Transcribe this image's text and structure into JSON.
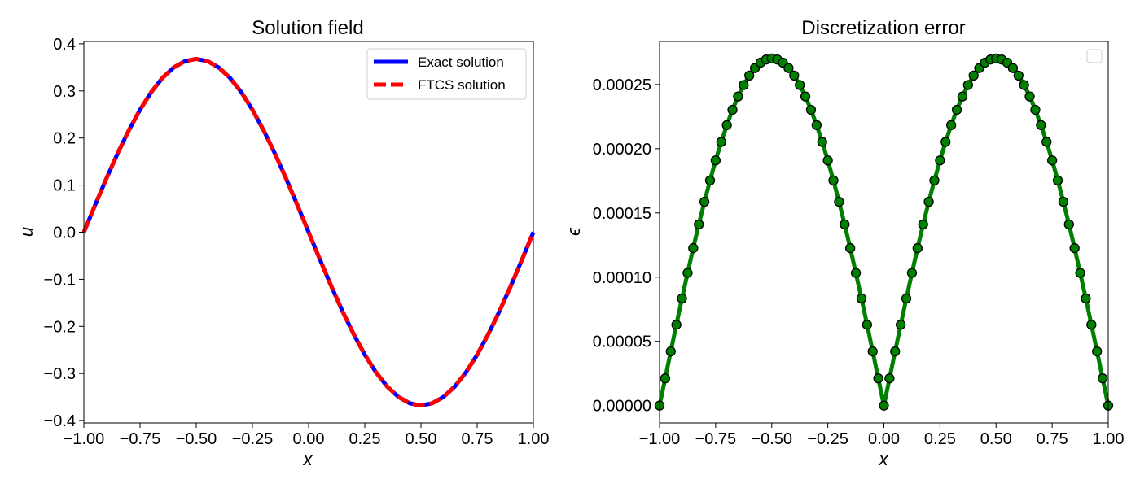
{
  "chart_data": [
    {
      "type": "line",
      "title": "Solution field",
      "xlabel": "x",
      "ylabel": "u",
      "xlim": [
        -1.0,
        1.0
      ],
      "ylim": [
        -0.405,
        0.405
      ],
      "xticks": [
        -1.0,
        -0.75,
        -0.5,
        -0.25,
        0.0,
        0.25,
        0.5,
        0.75,
        1.0
      ],
      "xtick_labels": [
        "−1.00",
        "−0.75",
        "−0.50",
        "−0.25",
        "0.00",
        "0.25",
        "0.50",
        "0.75",
        "1.00"
      ],
      "yticks": [
        -0.4,
        -0.3,
        -0.2,
        -0.1,
        0.0,
        0.1,
        0.2,
        0.3,
        0.4
      ],
      "ytick_labels": [
        "−0.4",
        "−0.3",
        "−0.2",
        "−0.1",
        "0.0",
        "0.1",
        "0.2",
        "0.3",
        "0.4"
      ],
      "grid": false,
      "legend_position": "top-right",
      "x": [
        -1.0,
        -0.95,
        -0.9,
        -0.85,
        -0.8,
        -0.75,
        -0.7,
        -0.65,
        -0.6,
        -0.55,
        -0.5,
        -0.45,
        -0.4,
        -0.35,
        -0.3,
        -0.25,
        -0.2,
        -0.15,
        -0.1,
        -0.05,
        0.0,
        0.05,
        0.1,
        0.15,
        0.2,
        0.25,
        0.3,
        0.35,
        0.4,
        0.45,
        0.5,
        0.55,
        0.6,
        0.65,
        0.7,
        0.75,
        0.8,
        0.85,
        0.9,
        0.95,
        1.0
      ],
      "series": [
        {
          "name": "Exact solution",
          "color": "#0000ff",
          "style": "solid",
          "values": [
            0.0,
            0.0576,
            0.1137,
            0.167,
            0.2162,
            0.2601,
            0.2976,
            0.3278,
            0.3499,
            0.3633,
            0.3679,
            0.3633,
            0.3499,
            0.3278,
            0.2976,
            0.2601,
            0.2162,
            0.167,
            0.1137,
            0.0576,
            0.0,
            -0.0576,
            -0.1137,
            -0.167,
            -0.2162,
            -0.2601,
            -0.2976,
            -0.3278,
            -0.3499,
            -0.3633,
            -0.3679,
            -0.3633,
            -0.3499,
            -0.3278,
            -0.2976,
            -0.2601,
            -0.2162,
            -0.167,
            -0.1137,
            -0.0576,
            0.0
          ]
        },
        {
          "name": "FTCS solution",
          "color": "#ff0000",
          "style": "dashed",
          "values": [
            0.0,
            0.0576,
            0.1137,
            0.167,
            0.2162,
            0.2601,
            0.2976,
            0.3278,
            0.3499,
            0.3633,
            0.3679,
            0.3633,
            0.3499,
            0.3278,
            0.2976,
            0.2601,
            0.2162,
            0.167,
            0.1137,
            0.0576,
            0.0,
            -0.0576,
            -0.1137,
            -0.167,
            -0.2162,
            -0.2601,
            -0.2976,
            -0.3278,
            -0.3499,
            -0.3633,
            -0.3679,
            -0.3633,
            -0.3499,
            -0.3278,
            -0.2976,
            -0.2601,
            -0.2162,
            -0.167,
            -0.1137,
            -0.0576,
            0.0
          ]
        }
      ]
    },
    {
      "type": "line",
      "title": "Discretization error",
      "xlabel": "x",
      "ylabel": "ϵ",
      "xlim": [
        -1.0,
        1.0
      ],
      "ylim": [
        -1.35e-05,
        0.0002835
      ],
      "xticks": [
        -1.0,
        -0.75,
        -0.5,
        -0.25,
        0.0,
        0.25,
        0.5,
        0.75,
        1.0
      ],
      "xtick_labels": [
        "−1.00",
        "−0.75",
        "−0.50",
        "−0.25",
        "0.00",
        "0.25",
        "0.50",
        "0.75",
        "1.00"
      ],
      "yticks": [
        0.0,
        5e-05,
        0.0001,
        0.00015,
        0.0002,
        0.00025
      ],
      "ytick_labels": [
        "0.00000",
        "0.00005",
        "0.00010",
        "0.00015",
        "0.00020",
        "0.00025"
      ],
      "grid": false,
      "legend_position": "top-right (empty)",
      "series": [
        {
          "name": "",
          "color": "#008000",
          "marker": "circle",
          "marker_edge": "#000000",
          "x": [
            -1.0,
            -0.975,
            -0.95,
            -0.925,
            -0.9,
            -0.875,
            -0.85,
            -0.825,
            -0.8,
            -0.775,
            -0.75,
            -0.725,
            -0.7,
            -0.675,
            -0.65,
            -0.625,
            -0.6,
            -0.575,
            -0.55,
            -0.525,
            -0.5,
            -0.475,
            -0.45,
            -0.425,
            -0.4,
            -0.375,
            -0.35,
            -0.325,
            -0.3,
            -0.275,
            -0.25,
            -0.225,
            -0.2,
            -0.175,
            -0.15,
            -0.125,
            -0.1,
            -0.075,
            -0.05,
            -0.025,
            0.0,
            0.025,
            0.05,
            0.075,
            0.1,
            0.125,
            0.15,
            0.175,
            0.2,
            0.225,
            0.25,
            0.275,
            0.3,
            0.325,
            0.35,
            0.375,
            0.4,
            0.425,
            0.45,
            0.475,
            0.5,
            0.525,
            0.55,
            0.575,
            0.6,
            0.625,
            0.65,
            0.675,
            0.7,
            0.725,
            0.75,
            0.775,
            0.8,
            0.825,
            0.85,
            0.875,
            0.9,
            0.925,
            0.95,
            0.975,
            1.0
          ],
          "values": [
            0.0,
            2.12e-05,
            4.22e-05,
            6.3e-05,
            8.34e-05,
            0.0001033,
            0.0001226,
            0.0001411,
            0.0001587,
            0.0001753,
            0.0001909,
            0.0002053,
            0.0002184,
            0.0002303,
            0.0002407,
            0.0002496,
            0.000257,
            0.0002628,
            0.000267,
            0.0002695,
            0.0002703,
            0.0002695,
            0.000267,
            0.0002628,
            0.000257,
            0.0002496,
            0.0002407,
            0.0002303,
            0.0002184,
            0.0002053,
            0.0001909,
            0.0001753,
            0.0001587,
            0.0001411,
            0.0001226,
            0.0001033,
            8.34e-05,
            6.3e-05,
            4.22e-05,
            2.12e-05,
            0.0,
            2.12e-05,
            4.22e-05,
            6.3e-05,
            8.34e-05,
            0.0001033,
            0.0001226,
            0.0001411,
            0.0001587,
            0.0001753,
            0.0001909,
            0.0002053,
            0.0002184,
            0.0002303,
            0.0002407,
            0.0002496,
            0.000257,
            0.0002628,
            0.000267,
            0.0002695,
            0.0002703,
            0.0002695,
            0.000267,
            0.0002628,
            0.000257,
            0.0002496,
            0.0002407,
            0.0002303,
            0.0002184,
            0.0002053,
            0.0001909,
            0.0001753,
            0.0001587,
            0.0001411,
            0.0001226,
            0.0001033,
            8.34e-05,
            6.3e-05,
            4.22e-05,
            2.12e-05,
            0.0
          ]
        }
      ]
    }
  ]
}
